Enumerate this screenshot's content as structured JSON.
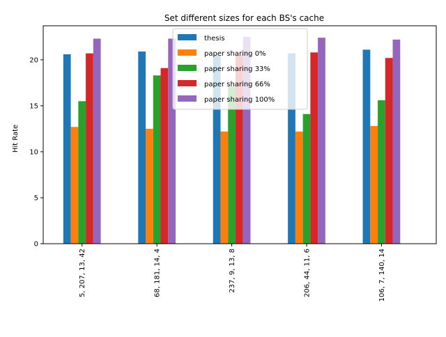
{
  "chart_data": {
    "type": "bar",
    "title": "Set different sizes for each BS's cache",
    "xlabel": "",
    "ylabel": "Hit Rate",
    "ylim": [
      0,
      23.7
    ],
    "yticks": [
      0,
      5,
      10,
      15,
      20
    ],
    "grid": false,
    "legend_position": "top-center",
    "categories": [
      "5, 207, 13, 42",
      "68, 181, 14, 4",
      "237, 9, 13, 8",
      "206, 44, 11, 6",
      "106, 7, 140, 14"
    ],
    "series": [
      {
        "name": "thesis",
        "color": "#1f77b4",
        "values": [
          20.6,
          20.9,
          20.5,
          20.7,
          21.1
        ]
      },
      {
        "name": "paper sharing 0%",
        "color": "#ff7f0e",
        "values": [
          12.7,
          12.5,
          12.2,
          12.2,
          12.8
        ]
      },
      {
        "name": "paper sharing 33%",
        "color": "#2ca02c",
        "values": [
          15.5,
          18.3,
          17.1,
          14.1,
          15.6
        ]
      },
      {
        "name": "paper sharing 66%",
        "color": "#d62728",
        "values": [
          20.7,
          19.1,
          20.5,
          20.8,
          20.2
        ]
      },
      {
        "name": "paper sharing 100%",
        "color": "#9467bd",
        "values": [
          22.3,
          22.3,
          22.5,
          22.4,
          22.2
        ]
      }
    ]
  }
}
